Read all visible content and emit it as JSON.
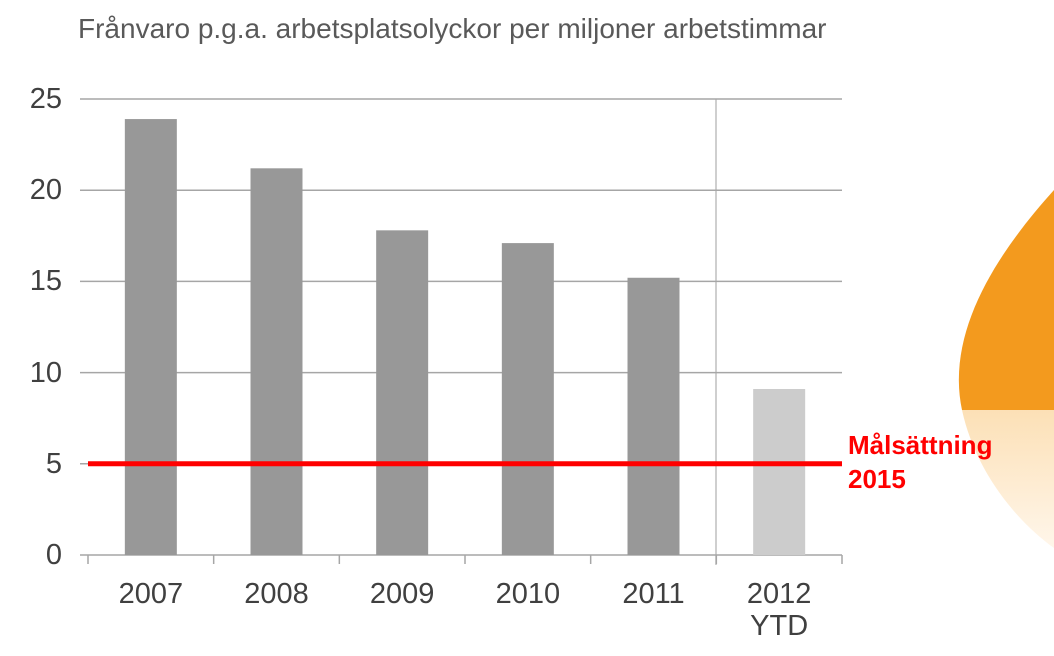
{
  "chart_data": {
    "type": "bar",
    "title": "Frånvaro p.g.a. arbetsplatsolyckor per miljoner arbetstimmar",
    "categories": [
      "2007",
      "2008",
      "2009",
      "2010",
      "2011",
      "2012 YTD"
    ],
    "values": [
      23.9,
      21.2,
      17.8,
      17.1,
      15.2,
      9.1
    ],
    "colors": [
      "#989898",
      "#989898",
      "#989898",
      "#989898",
      "#989898",
      "#cccccc"
    ],
    "ylim": [
      0,
      25
    ],
    "yticks": [
      0,
      5,
      10,
      15,
      20,
      25
    ],
    "grid": true,
    "target_line": {
      "value": 5,
      "label": "Målsättning 2015",
      "color": "#ff0000"
    }
  }
}
